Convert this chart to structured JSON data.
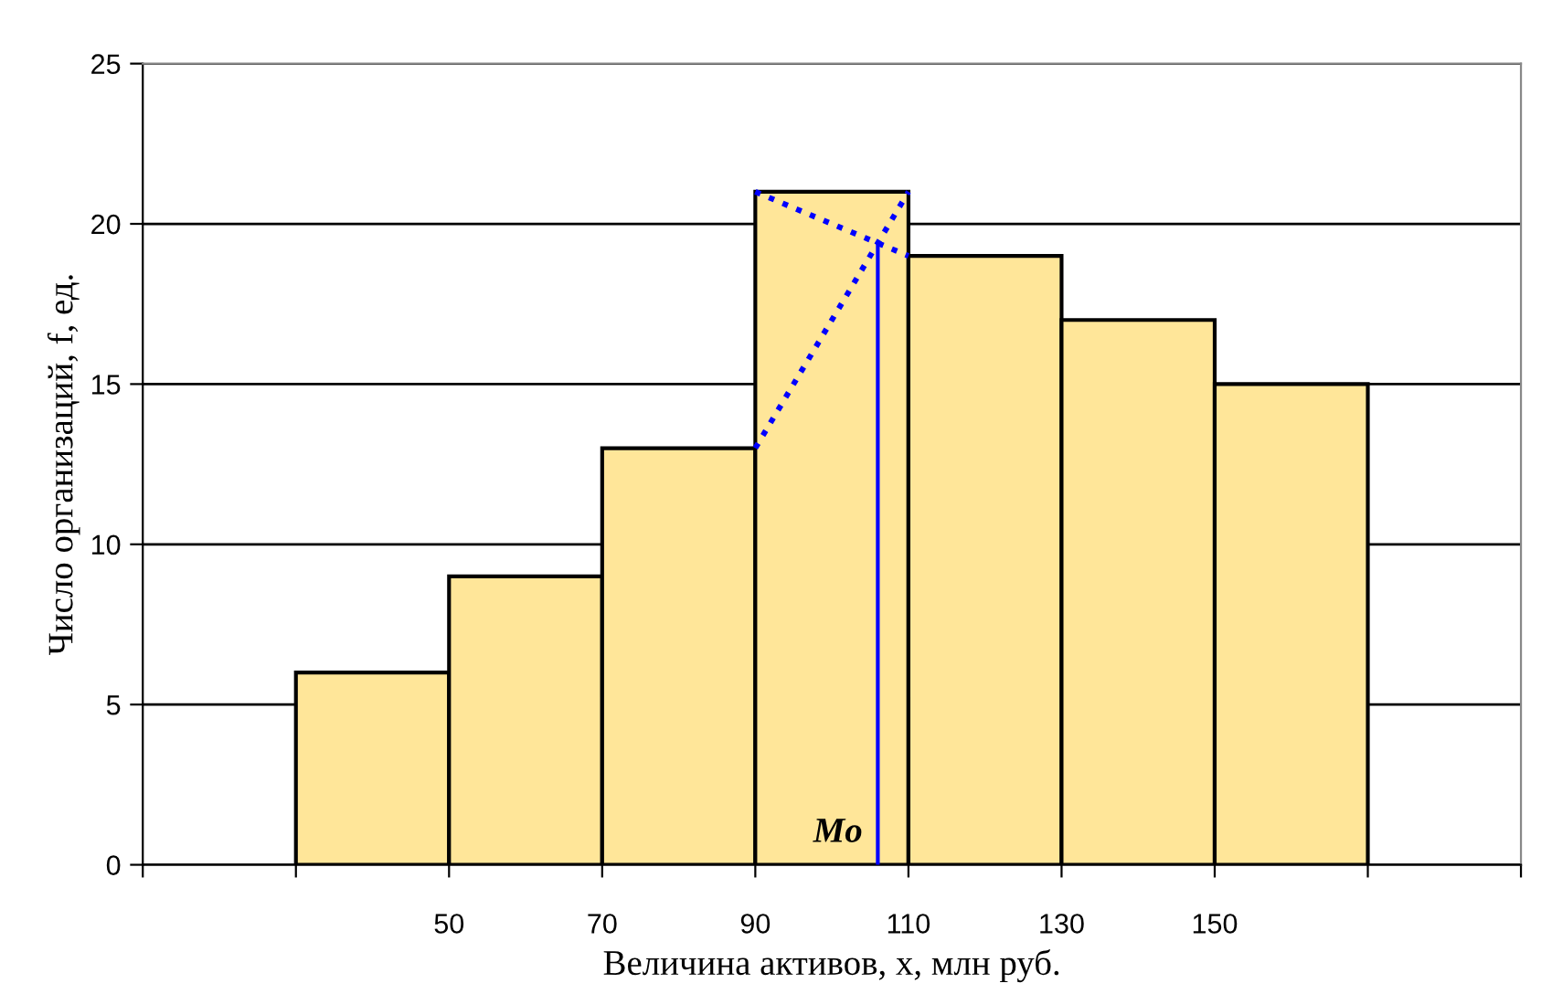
{
  "chart_data": {
    "type": "histogram",
    "xlabel": "Величина активов, x, млн руб.",
    "ylabel": "Число организаций, f, ед.",
    "bins": [
      30,
      50,
      70,
      90,
      110,
      130,
      150,
      170
    ],
    "values": [
      6,
      9,
      13,
      21,
      19,
      17,
      15
    ],
    "color": "#ffe699",
    "series": [
      {
        "type": "line",
        "x": [
          90,
          110
        ],
        "values": [
          13,
          21
        ],
        "color": "#0000ff",
        "line_style": "dotted"
      },
      {
        "type": "line",
        "x": [
          90,
          110
        ],
        "values": [
          21,
          19
        ],
        "color": "#0000ff",
        "line_style": "dotted"
      },
      {
        "type": "line",
        "x": [
          106,
          106
        ],
        "values": [
          0,
          19.4
        ],
        "color": "#0000ff",
        "line_style": "solid"
      }
    ],
    "annotations": [
      {
        "text": "Mo",
        "x": 106,
        "y": 0
      }
    ],
    "xlim": [
      10,
      190
    ],
    "xticks": [
      {
        "value": 10,
        "label": null
      },
      {
        "value": 30,
        "label": null
      },
      50,
      70,
      90,
      110,
      130,
      150,
      {
        "value": 170,
        "label": null
      },
      {
        "value": 190,
        "label": null
      }
    ],
    "ylim": [
      0,
      25
    ],
    "yticks": [
      0,
      5,
      10,
      15,
      20,
      25
    ],
    "grid": "y",
    "legend": false
  }
}
